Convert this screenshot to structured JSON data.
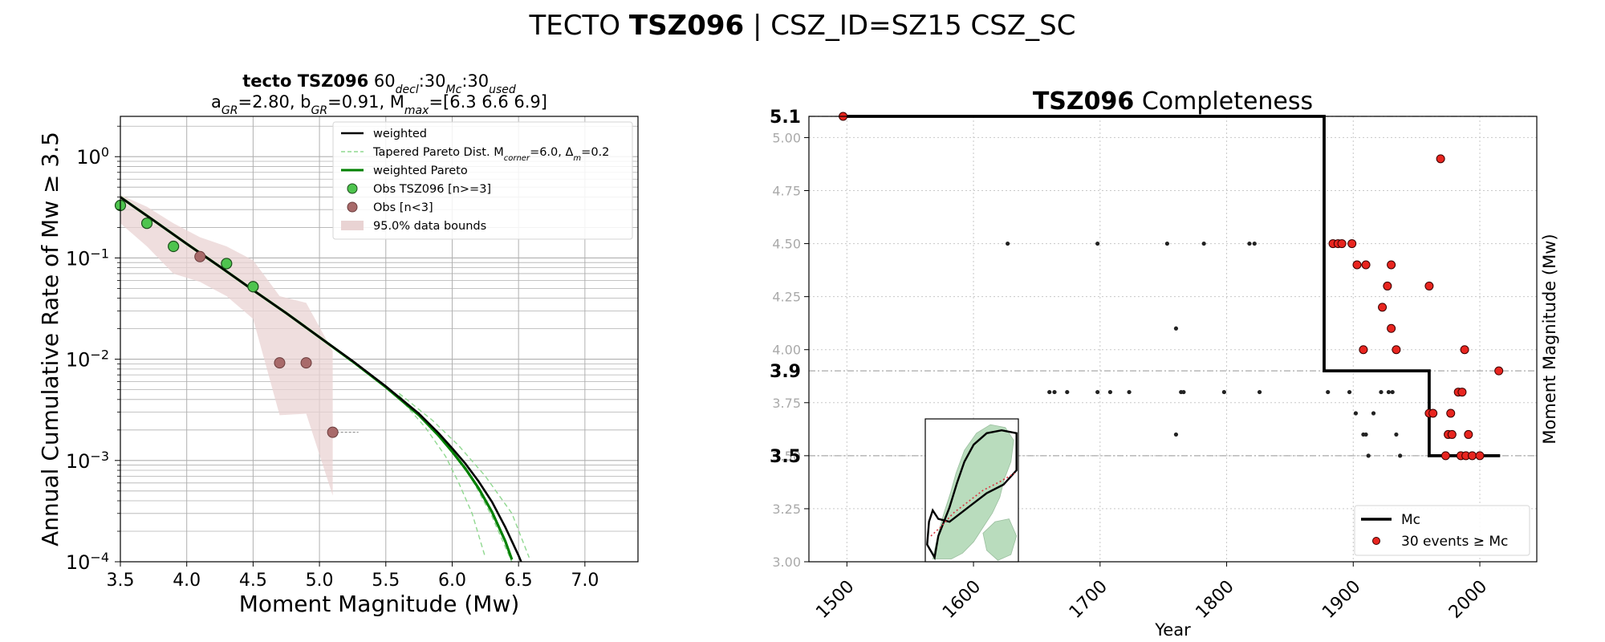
{
  "figure": {
    "suptitle_prefix": "TECTO ",
    "suptitle_bold": "TSZ096",
    "suptitle_suffix": " | CSZ_ID=SZ15 CSZ_SC"
  },
  "chart_data": [
    {
      "type": "line",
      "title_bold": "tecto TSZ096",
      "title_rest": [
        "60",
        "decl",
        ":30",
        "Mc",
        ":30",
        "used"
      ],
      "subtitle": "aGR=2.80, bGR=0.91, Mmax=[6.3 6.6 6.9]",
      "subtitle_parts": [
        "a",
        "GR",
        "=2.80,  b",
        "GR",
        "=0.91, M",
        "max",
        "=[6.3 6.6 6.9]"
      ],
      "xlabel": "Moment Magnitude (Mw)",
      "ylabel": "Annual Cumulative Rate of Mw  ≥  3.5",
      "xlim": [
        3.5,
        7.4
      ],
      "ylim": [
        0.0001,
        2.5
      ],
      "y_scale": "log",
      "grid": true,
      "legend_position": "top-right",
      "x_ticks": [
        3.5,
        4.0,
        4.5,
        5.0,
        5.5,
        6.0,
        6.5,
        7.0
      ],
      "x_tick_labels": [
        "3.5",
        "4.0",
        "4.5",
        "5.0",
        "5.5",
        "6.0",
        "6.5",
        "7.0"
      ],
      "y_ticks": [
        {
          "value": 1,
          "base": "10",
          "exp": "0"
        },
        {
          "value": 0.1,
          "base": "10",
          "exp": "−1"
        },
        {
          "value": 0.01,
          "base": "10",
          "exp": "−2"
        },
        {
          "value": 0.001,
          "base": "10",
          "exp": "−3"
        },
        {
          "value": 0.0001,
          "base": "10",
          "exp": "−4"
        }
      ],
      "legend": [
        {
          "label": "weighted",
          "style": "black-line"
        },
        {
          "label": "Tapered Pareto Dist. M",
          "sub1": "corner",
          "mid": "=6.0, Δ",
          "sub2": "m",
          "end": "=0.2",
          "style": "green-dashed"
        },
        {
          "label": "weighted Pareto",
          "style": "green-line"
        },
        {
          "label": "Obs TSZ096 [n>=3]",
          "style": "green-dot"
        },
        {
          "label": "Obs [n<3]",
          "style": "brown-dot"
        },
        {
          "label": "95.0% data bounds",
          "style": "band"
        }
      ],
      "colors": {
        "weighted": "#000000",
        "weighted_pareto": "#008000",
        "tapered": "#90d890",
        "obs": "#4ec44e",
        "obs_small": "#a86a6a",
        "band": "#e9d3d3"
      },
      "series": [
        {
          "name": "weighted",
          "x": [
            3.5,
            3.75,
            4.0,
            4.25,
            4.5,
            4.75,
            5.0,
            5.25,
            5.5,
            5.75,
            5.9,
            6.0,
            6.1,
            6.2,
            6.3,
            6.4,
            6.5,
            6.55
          ],
          "y": [
            0.398,
            0.235,
            0.138,
            0.082,
            0.048,
            0.0285,
            0.0165,
            0.0096,
            0.0054,
            0.0029,
            0.00185,
            0.00132,
            0.00093,
            0.00062,
            0.00039,
            0.00022,
            0.000115,
            8e-05
          ]
        },
        {
          "name": "weighted Pareto",
          "x": [
            3.5,
            3.75,
            4.0,
            4.25,
            4.5,
            4.75,
            5.0,
            5.25,
            5.5,
            5.75,
            5.9,
            6.0,
            6.1,
            6.2,
            6.3,
            6.4,
            6.45
          ],
          "y": [
            0.398,
            0.235,
            0.138,
            0.082,
            0.048,
            0.0285,
            0.0165,
            0.0095,
            0.0053,
            0.0028,
            0.00175,
            0.00122,
            0.00083,
            0.00053,
            0.00031,
            0.00016,
            0.000105
          ]
        },
        {
          "name": "Tapered Pareto Dist. Mcorner=6.0, Δm=0.2",
          "style": "dashed",
          "variants": [
            {
              "x": [
                5.6,
                5.8,
                5.95,
                6.05,
                6.15,
                6.25
              ],
              "y": [
                0.0042,
                0.0021,
                0.0011,
                0.0006,
                0.0003,
                0.00011
              ]
            },
            {
              "x": [
                5.6,
                5.8,
                6.0,
                6.15,
                6.3,
                6.4,
                6.45
              ],
              "y": [
                0.0044,
                0.0024,
                0.0012,
                0.00065,
                0.00028,
                0.00014,
                0.0001
              ]
            },
            {
              "x": [
                5.6,
                5.85,
                6.05,
                6.25,
                6.45,
                6.58
              ],
              "y": [
                0.0046,
                0.0025,
                0.0014,
                0.0007,
                0.0003,
                0.00011
              ]
            }
          ]
        }
      ],
      "obs_n_ge_3": [
        {
          "x": 3.5,
          "y": 0.33
        },
        {
          "x": 3.7,
          "y": 0.22
        },
        {
          "x": 3.9,
          "y": 0.13
        },
        {
          "x": 4.3,
          "y": 0.088
        },
        {
          "x": 4.5,
          "y": 0.052
        }
      ],
      "obs_n_lt_3": [
        {
          "x": 4.1,
          "y": 0.103
        },
        {
          "x": 4.7,
          "y": 0.0092
        },
        {
          "x": 4.9,
          "y": 0.0092
        },
        {
          "x": 5.1,
          "y": 0.0019
        }
      ],
      "bounds_95": {
        "x": [
          3.5,
          3.7,
          3.9,
          4.1,
          4.3,
          4.5,
          4.7,
          4.9,
          5.1
        ],
        "upper": [
          0.42,
          0.32,
          0.22,
          0.16,
          0.13,
          0.095,
          0.042,
          0.036,
          0.012
        ],
        "lower": [
          0.22,
          0.13,
          0.07,
          0.058,
          0.042,
          0.025,
          0.0028,
          0.0029,
          0.00045
        ]
      }
    },
    {
      "type": "scatter",
      "title_bold": "TSZ096",
      "title_rest": " Completeness",
      "xlabel": "Year",
      "ylabel": "Moment Magnitude (Mw)",
      "xlim": [
        1470,
        2045
      ],
      "ylim": [
        3.0,
        5.1
      ],
      "grid": true,
      "legend_position": "bottom-right",
      "x_ticks": [
        1500,
        1600,
        1700,
        1800,
        1900,
        2000
      ],
      "x_tick_labels": [
        "1500",
        "1600",
        "1700",
        "1800",
        "1900",
        "2000"
      ],
      "y_ticks": [
        3.0,
        3.25,
        3.5,
        3.75,
        4.0,
        4.25,
        4.5,
        4.75,
        5.0
      ],
      "y_tick_labels": [
        "3.00",
        "3.25",
        "3.50",
        "3.75",
        "4.00",
        "4.25",
        "4.50",
        "4.75",
        "5.00"
      ],
      "mc_levels": [
        {
          "value": 5.1,
          "label": "5.1"
        },
        {
          "value": 3.9,
          "label": "3.9"
        },
        {
          "value": 3.5,
          "label": "3.5"
        }
      ],
      "legend": [
        {
          "label": "Mc",
          "style": "black-line"
        },
        {
          "label": "30 events  ≥  Mc",
          "style": "red-dot"
        }
      ],
      "colors": {
        "mc": "#000000",
        "events_ge_mc": "#e8251f",
        "events_lt_mc": "#222222"
      },
      "mc_step": {
        "x": [
          1498,
          1877,
          1877,
          1960,
          1960,
          2016
        ],
        "y": [
          5.1,
          5.1,
          3.9,
          3.9,
          3.5,
          3.5
        ]
      },
      "events_ge_mc": [
        {
          "x": 1497,
          "y": 5.1
        },
        {
          "x": 1884,
          "y": 4.5
        },
        {
          "x": 1888,
          "y": 4.5
        },
        {
          "x": 1891,
          "y": 4.5
        },
        {
          "x": 1899,
          "y": 4.5
        },
        {
          "x": 1903,
          "y": 4.4
        },
        {
          "x": 1910,
          "y": 4.4
        },
        {
          "x": 1908,
          "y": 4.0
        },
        {
          "x": 1923,
          "y": 4.2
        },
        {
          "x": 1927,
          "y": 4.3
        },
        {
          "x": 1930,
          "y": 4.4
        },
        {
          "x": 1930,
          "y": 4.1
        },
        {
          "x": 1934,
          "y": 4.0
        },
        {
          "x": 1960,
          "y": 4.3
        },
        {
          "x": 1960,
          "y": 3.7
        },
        {
          "x": 1963,
          "y": 3.7
        },
        {
          "x": 1969,
          "y": 4.9
        },
        {
          "x": 1973,
          "y": 3.5
        },
        {
          "x": 1975,
          "y": 3.6
        },
        {
          "x": 1978,
          "y": 3.6
        },
        {
          "x": 1977,
          "y": 3.7
        },
        {
          "x": 1983,
          "y": 3.8
        },
        {
          "x": 1986,
          "y": 3.8
        },
        {
          "x": 1985,
          "y": 3.5
        },
        {
          "x": 1988,
          "y": 4.0
        },
        {
          "x": 1989,
          "y": 3.5
        },
        {
          "x": 1991,
          "y": 3.6
        },
        {
          "x": 1994,
          "y": 3.5
        },
        {
          "x": 2000,
          "y": 3.5
        },
        {
          "x": 2015,
          "y": 3.9
        }
      ],
      "events_lt_mc": [
        {
          "x": 1627,
          "y": 4.5
        },
        {
          "x": 1698,
          "y": 4.5
        },
        {
          "x": 1753,
          "y": 4.5
        },
        {
          "x": 1782,
          "y": 4.5
        },
        {
          "x": 1818,
          "y": 4.5
        },
        {
          "x": 1822,
          "y": 4.5
        },
        {
          "x": 1760,
          "y": 4.1
        },
        {
          "x": 1760,
          "y": 3.6
        },
        {
          "x": 1660,
          "y": 3.8
        },
        {
          "x": 1664,
          "y": 3.8
        },
        {
          "x": 1674,
          "y": 3.8
        },
        {
          "x": 1698,
          "y": 3.8
        },
        {
          "x": 1708,
          "y": 3.8
        },
        {
          "x": 1723,
          "y": 3.8
        },
        {
          "x": 1764,
          "y": 3.8
        },
        {
          "x": 1766,
          "y": 3.8
        },
        {
          "x": 1798,
          "y": 3.8
        },
        {
          "x": 1826,
          "y": 3.8
        },
        {
          "x": 1880,
          "y": 3.8
        },
        {
          "x": 1897,
          "y": 3.8
        },
        {
          "x": 1922,
          "y": 3.8
        },
        {
          "x": 1928,
          "y": 3.8
        },
        {
          "x": 1931,
          "y": 3.8
        },
        {
          "x": 1902,
          "y": 3.7
        },
        {
          "x": 1916,
          "y": 3.7
        },
        {
          "x": 1908,
          "y": 3.6
        },
        {
          "x": 1910,
          "y": 3.6
        },
        {
          "x": 1934,
          "y": 3.6
        },
        {
          "x": 1912,
          "y": 3.5
        },
        {
          "x": 1937,
          "y": 3.5
        }
      ]
    }
  ],
  "inset_map": {
    "content": "region-map-inset",
    "colors": {
      "land": "#b9dcbd",
      "outline": "#000000",
      "fault": "#d9333f"
    }
  }
}
